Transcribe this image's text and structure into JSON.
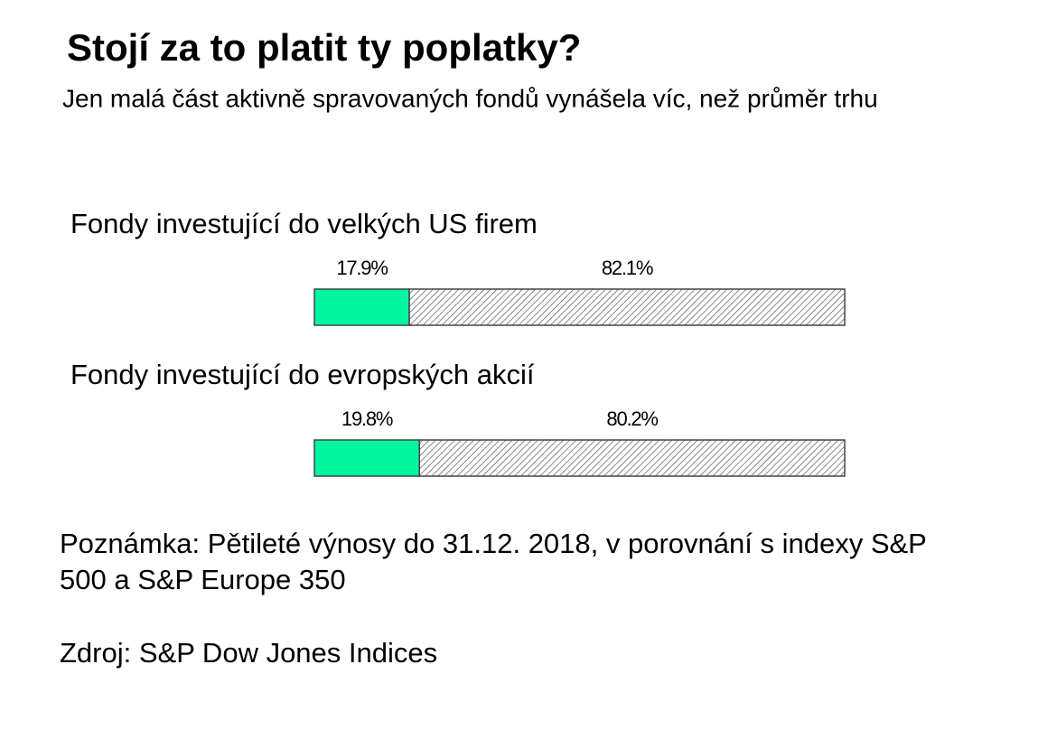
{
  "title": "Stojí za to platit ty poplatky?",
  "subtitle": "Jen malá část aktivně spravovaných fondů vynášela víc, než průměr trhu",
  "chart_data": [
    {
      "type": "stacked-bar",
      "title": "Fondy investující do velkých US firem",
      "xlim": [
        0,
        100
      ],
      "series": [
        {
          "color": "#00f5a0",
          "pattern": "solid",
          "values": [
            17.9
          ],
          "value_labels": [
            "17.9%"
          ]
        },
        {
          "color": "#555555",
          "pattern": "hatch",
          "values": [
            82.1
          ],
          "value_labels": [
            "82.1%"
          ]
        }
      ]
    },
    {
      "type": "stacked-bar",
      "title": "Fondy investující do evropských akcií",
      "xlim": [
        0,
        100
      ],
      "series": [
        {
          "color": "#00f5a0",
          "pattern": "solid",
          "values": [
            19.8
          ],
          "value_labels": [
            "19.8%"
          ]
        },
        {
          "color": "#555555",
          "pattern": "hatch",
          "values": [
            80.2
          ],
          "value_labels": [
            "80.2%"
          ]
        }
      ]
    }
  ],
  "note": [
    "Poznámka: Pětileté výnosy do 31.12. 2018, v porovnání s indexy S&P",
    "500 a S&P Europe 350"
  ],
  "source": "Zdroj: S&P Dow Jones Indices"
}
